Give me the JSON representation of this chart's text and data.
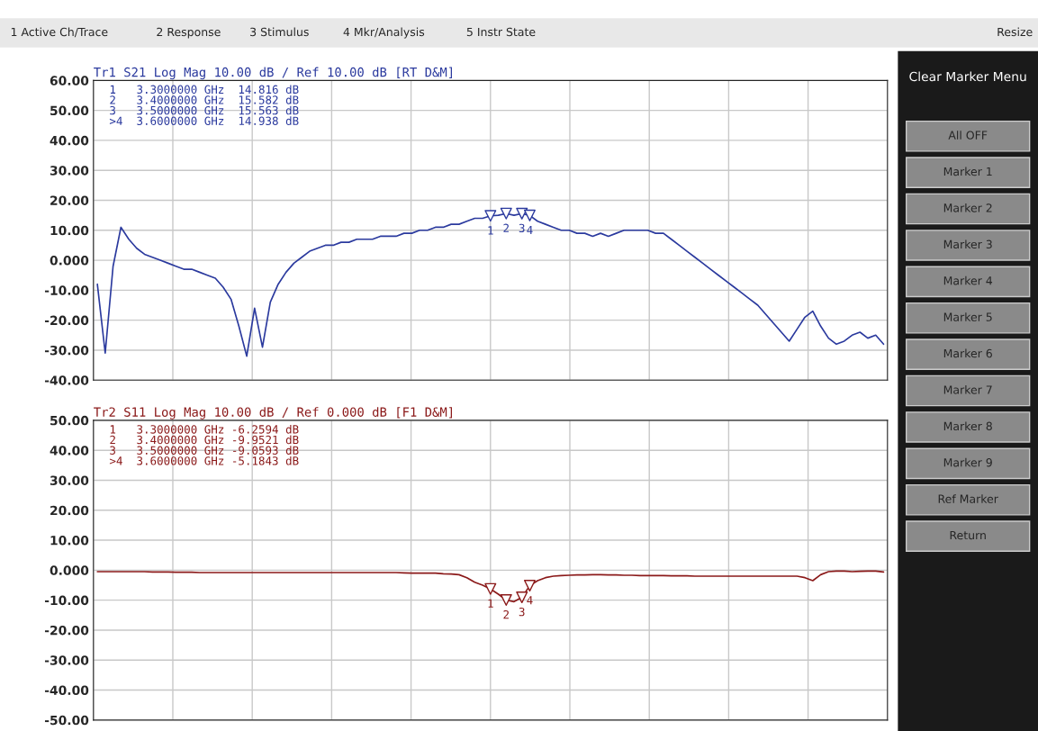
{
  "chart_data": [
    {
      "type": "line",
      "title": "Tr1 S21 Log Mag 10.00 dB / Ref 10.00 dB [RT D&M]",
      "grid": true,
      "tick_labels": "y",
      "ylim": [
        -40,
        60
      ],
      "yticks": [
        {
          "value": 60,
          "label": "60.00"
        },
        {
          "value": 50,
          "label": "50.00"
        },
        {
          "value": 40,
          "label": "40.00"
        },
        {
          "value": 30,
          "label": "30.00"
        },
        {
          "value": 20,
          "label": "20.00"
        },
        {
          "value": 10,
          "label": "10.00"
        },
        {
          "value": 0,
          "label": "0.000"
        },
        {
          "value": -10,
          "label": "-10.00"
        },
        {
          "value": -20,
          "label": "-20.00"
        },
        {
          "value": -30,
          "label": "-30.00"
        },
        {
          "value": -40,
          "label": "-40.00"
        }
      ],
      "categories": [
        null,
        null,
        null,
        null,
        null,
        null,
        null,
        null,
        null,
        null,
        null,
        null,
        null,
        null,
        null,
        null,
        null,
        null,
        null,
        null,
        null,
        null,
        null,
        null,
        null,
        null,
        null,
        null,
        null,
        null,
        null,
        null,
        null,
        null,
        null,
        null,
        null,
        null,
        null,
        null,
        null,
        null,
        null,
        null,
        null,
        null,
        null,
        null,
        null,
        null,
        null,
        null,
        null,
        null,
        null,
        null,
        null,
        null,
        null,
        null,
        null,
        null,
        null,
        null,
        null,
        null,
        null,
        null,
        null,
        null,
        null,
        null,
        null,
        null,
        null,
        null,
        null,
        null,
        null,
        null,
        null,
        null,
        null,
        null,
        null,
        null,
        null,
        null,
        null,
        null,
        null,
        null,
        null,
        null,
        null,
        null,
        null,
        null,
        null,
        null,
        null
      ],
      "annotations": [
        "1   3.3000000 GHz  14.816 dB",
        "2   3.4000000 GHz  15.582 dB",
        "3   3.5000000 GHz  15.563 dB",
        ">4  3.6000000 GHz  14.938 dB"
      ],
      "series": [
        {
          "type": "line",
          "color": "#2b3a9e",
          "values": [
            -8,
            -31,
            -2,
            11,
            7,
            4,
            2,
            1,
            0,
            -1,
            -2,
            -3,
            -3,
            -4,
            -5,
            -6,
            -9,
            -13,
            -22,
            -32,
            -16,
            -29,
            -14,
            -8,
            -4,
            -1,
            1,
            3,
            4,
            5,
            5,
            6,
            6,
            7,
            7,
            7,
            8,
            8,
            8,
            9,
            9,
            10,
            10,
            11,
            11,
            12,
            12,
            13,
            14,
            14,
            14.816,
            15,
            15.582,
            15,
            15.563,
            14.938,
            13,
            12,
            11,
            10,
            10,
            9,
            9,
            8,
            9,
            8,
            9,
            10,
            10,
            10,
            10,
            9,
            9,
            7,
            5,
            3,
            1,
            -1,
            -3,
            -5,
            -7,
            -9,
            -11,
            -13,
            -15,
            -18,
            -21,
            -24,
            -27,
            -23,
            -19,
            -17,
            -22,
            -26,
            -28,
            -27,
            -25,
            -24,
            -26,
            -25,
            -28
          ]
        },
        {
          "type": "scatter",
          "name": "1",
          "marker": "triangle",
          "color": "#2b3a9e",
          "values": [
            null,
            null,
            null,
            null,
            null,
            null,
            null,
            null,
            null,
            null,
            null,
            null,
            null,
            null,
            null,
            null,
            null,
            null,
            null,
            null,
            null,
            null,
            null,
            null,
            null,
            null,
            null,
            null,
            null,
            null,
            null,
            null,
            null,
            null,
            null,
            null,
            null,
            null,
            null,
            null,
            null,
            null,
            null,
            null,
            null,
            null,
            null,
            null,
            null,
            null,
            14.816,
            null,
            null,
            null,
            null,
            null,
            null,
            null,
            null,
            null,
            null,
            null,
            null,
            null,
            null,
            null,
            null,
            null,
            null,
            null,
            null,
            null,
            null,
            null,
            null,
            null,
            null,
            null,
            null,
            null,
            null,
            null,
            null,
            null,
            null,
            null,
            null,
            null,
            null,
            null,
            null,
            null,
            null,
            null,
            null,
            null,
            null,
            null,
            null,
            null,
            null
          ]
        },
        {
          "type": "scatter",
          "name": "2",
          "marker": "triangle",
          "color": "#2b3a9e",
          "values": [
            null,
            null,
            null,
            null,
            null,
            null,
            null,
            null,
            null,
            null,
            null,
            null,
            null,
            null,
            null,
            null,
            null,
            null,
            null,
            null,
            null,
            null,
            null,
            null,
            null,
            null,
            null,
            null,
            null,
            null,
            null,
            null,
            null,
            null,
            null,
            null,
            null,
            null,
            null,
            null,
            null,
            null,
            null,
            null,
            null,
            null,
            null,
            null,
            null,
            null,
            null,
            null,
            15.582,
            null,
            null,
            null,
            null,
            null,
            null,
            null,
            null,
            null,
            null,
            null,
            null,
            null,
            null,
            null,
            null,
            null,
            null,
            null,
            null,
            null,
            null,
            null,
            null,
            null,
            null,
            null,
            null,
            null,
            null,
            null,
            null,
            null,
            null,
            null,
            null,
            null,
            null,
            null,
            null,
            null,
            null,
            null,
            null,
            null,
            null,
            null,
            null
          ]
        },
        {
          "type": "scatter",
          "name": "3",
          "marker": "triangle",
          "color": "#2b3a9e",
          "values": [
            null,
            null,
            null,
            null,
            null,
            null,
            null,
            null,
            null,
            null,
            null,
            null,
            null,
            null,
            null,
            null,
            null,
            null,
            null,
            null,
            null,
            null,
            null,
            null,
            null,
            null,
            null,
            null,
            null,
            null,
            null,
            null,
            null,
            null,
            null,
            null,
            null,
            null,
            null,
            null,
            null,
            null,
            null,
            null,
            null,
            null,
            null,
            null,
            null,
            null,
            null,
            null,
            null,
            null,
            15.563,
            null,
            null,
            null,
            null,
            null,
            null,
            null,
            null,
            null,
            null,
            null,
            null,
            null,
            null,
            null,
            null,
            null,
            null,
            null,
            null,
            null,
            null,
            null,
            null,
            null,
            null,
            null,
            null,
            null,
            null,
            null,
            null,
            null,
            null,
            null,
            null,
            null,
            null,
            null,
            null,
            null,
            null,
            null,
            null,
            null,
            null
          ]
        },
        {
          "type": "scatter",
          "name": "4",
          "marker": "triangle",
          "color": "#2b3a9e",
          "values": [
            null,
            null,
            null,
            null,
            null,
            null,
            null,
            null,
            null,
            null,
            null,
            null,
            null,
            null,
            null,
            null,
            null,
            null,
            null,
            null,
            null,
            null,
            null,
            null,
            null,
            null,
            null,
            null,
            null,
            null,
            null,
            null,
            null,
            null,
            null,
            null,
            null,
            null,
            null,
            null,
            null,
            null,
            null,
            null,
            null,
            null,
            null,
            null,
            null,
            null,
            null,
            null,
            null,
            null,
            null,
            14.938,
            null,
            null,
            null,
            null,
            null,
            null,
            null,
            null,
            null,
            null,
            null,
            null,
            null,
            null,
            null,
            null,
            null,
            null,
            null,
            null,
            null,
            null,
            null,
            null,
            null,
            null,
            null,
            null,
            null,
            null,
            null,
            null,
            null,
            null,
            null,
            null,
            null,
            null,
            null,
            null,
            null,
            null,
            null,
            null,
            null
          ]
        }
      ]
    },
    {
      "type": "line",
      "title": "Tr2 S11 Log Mag 10.00 dB / Ref 0.000 dB [F1 D&M]",
      "grid": true,
      "tick_labels": "y",
      "ylim": [
        -50,
        50
      ],
      "yticks": [
        {
          "value": 50,
          "label": "50.00"
        },
        {
          "value": 40,
          "label": "40.00"
        },
        {
          "value": 30,
          "label": "30.00"
        },
        {
          "value": 20,
          "label": "20.00"
        },
        {
          "value": 10,
          "label": "10.00"
        },
        {
          "value": 0,
          "label": "0.000"
        },
        {
          "value": -10,
          "label": "-10.00"
        },
        {
          "value": -20,
          "label": "-20.00"
        },
        {
          "value": -30,
          "label": "-30.00"
        },
        {
          "value": -40,
          "label": "-40.00"
        },
        {
          "value": -50,
          "label": "-50.00"
        }
      ],
      "categories": [
        null,
        null,
        null,
        null,
        null,
        null,
        null,
        null,
        null,
        null,
        null,
        null,
        null,
        null,
        null,
        null,
        null,
        null,
        null,
        null,
        null,
        null,
        null,
        null,
        null,
        null,
        null,
        null,
        null,
        null,
        null,
        null,
        null,
        null,
        null,
        null,
        null,
        null,
        null,
        null,
        null,
        null,
        null,
        null,
        null,
        null,
        null,
        null,
        null,
        null,
        null,
        null,
        null,
        null,
        null,
        null,
        null,
        null,
        null,
        null,
        null,
        null,
        null,
        null,
        null,
        null,
        null,
        null,
        null,
        null,
        null,
        null,
        null,
        null,
        null,
        null,
        null,
        null,
        null,
        null,
        null,
        null,
        null,
        null,
        null,
        null,
        null,
        null,
        null,
        null,
        null,
        null,
        null,
        null,
        null,
        null,
        null,
        null,
        null,
        null,
        null
      ],
      "annotations": [
        "1   3.3000000 GHz -6.2594 dB",
        "2   3.4000000 GHz -9.9521 dB",
        "3   3.5000000 GHz -9.0593 dB",
        ">4  3.6000000 GHz -5.1843 dB"
      ],
      "series": [
        {
          "type": "line",
          "color": "#8b1a1a",
          "values": [
            -0.5,
            -0.5,
            -0.5,
            -0.5,
            -0.5,
            -0.5,
            -0.5,
            -0.6,
            -0.6,
            -0.6,
            -0.7,
            -0.7,
            -0.7,
            -0.8,
            -0.8,
            -0.8,
            -0.8,
            -0.8,
            -0.8,
            -0.8,
            -0.8,
            -0.8,
            -0.8,
            -0.8,
            -0.8,
            -0.8,
            -0.8,
            -0.8,
            -0.8,
            -0.8,
            -0.8,
            -0.8,
            -0.8,
            -0.8,
            -0.8,
            -0.8,
            -0.8,
            -0.8,
            -0.8,
            -0.9,
            -1,
            -1,
            -1,
            -1,
            -1.2,
            -1.3,
            -1.5,
            -2.5,
            -4,
            -5,
            -6.2594,
            -8,
            -9.9521,
            -10.5,
            -9.0593,
            -5.1843,
            -3.5,
            -2.5,
            -2,
            -1.8,
            -1.7,
            -1.6,
            -1.6,
            -1.5,
            -1.5,
            -1.6,
            -1.6,
            -1.7,
            -1.7,
            -1.8,
            -1.8,
            -1.8,
            -1.8,
            -1.9,
            -1.9,
            -1.9,
            -2,
            -2,
            -2,
            -2,
            -2,
            -2,
            -2,
            -2,
            -2,
            -2,
            -2,
            -2,
            -2,
            -2,
            -2.5,
            -3.5,
            -1.5,
            -0.5,
            -0.3,
            -0.3,
            -0.5,
            -0.4,
            -0.3,
            -0.3,
            -0.6
          ]
        },
        {
          "type": "scatter",
          "name": "1",
          "marker": "triangle",
          "color": "#8b1a1a",
          "values": [
            null,
            null,
            null,
            null,
            null,
            null,
            null,
            null,
            null,
            null,
            null,
            null,
            null,
            null,
            null,
            null,
            null,
            null,
            null,
            null,
            null,
            null,
            null,
            null,
            null,
            null,
            null,
            null,
            null,
            null,
            null,
            null,
            null,
            null,
            null,
            null,
            null,
            null,
            null,
            null,
            null,
            null,
            null,
            null,
            null,
            null,
            null,
            null,
            null,
            null,
            -6.2594,
            null,
            null,
            null,
            null,
            null,
            null,
            null,
            null,
            null,
            null,
            null,
            null,
            null,
            null,
            null,
            null,
            null,
            null,
            null,
            null,
            null,
            null,
            null,
            null,
            null,
            null,
            null,
            null,
            null,
            null,
            null,
            null,
            null,
            null,
            null,
            null,
            null,
            null,
            null,
            null,
            null,
            null,
            null,
            null,
            null,
            null,
            null,
            null,
            null,
            null
          ]
        },
        {
          "type": "scatter",
          "name": "2",
          "marker": "triangle",
          "color": "#8b1a1a",
          "values": [
            null,
            null,
            null,
            null,
            null,
            null,
            null,
            null,
            null,
            null,
            null,
            null,
            null,
            null,
            null,
            null,
            null,
            null,
            null,
            null,
            null,
            null,
            null,
            null,
            null,
            null,
            null,
            null,
            null,
            null,
            null,
            null,
            null,
            null,
            null,
            null,
            null,
            null,
            null,
            null,
            null,
            null,
            null,
            null,
            null,
            null,
            null,
            null,
            null,
            null,
            null,
            null,
            -9.9521,
            null,
            null,
            null,
            null,
            null,
            null,
            null,
            null,
            null,
            null,
            null,
            null,
            null,
            null,
            null,
            null,
            null,
            null,
            null,
            null,
            null,
            null,
            null,
            null,
            null,
            null,
            null,
            null,
            null,
            null,
            null,
            null,
            null,
            null,
            null,
            null,
            null,
            null,
            null,
            null,
            null,
            null,
            null,
            null,
            null,
            null,
            null,
            null
          ]
        },
        {
          "type": "scatter",
          "name": "3",
          "marker": "triangle",
          "color": "#8b1a1a",
          "values": [
            null,
            null,
            null,
            null,
            null,
            null,
            null,
            null,
            null,
            null,
            null,
            null,
            null,
            null,
            null,
            null,
            null,
            null,
            null,
            null,
            null,
            null,
            null,
            null,
            null,
            null,
            null,
            null,
            null,
            null,
            null,
            null,
            null,
            null,
            null,
            null,
            null,
            null,
            null,
            null,
            null,
            null,
            null,
            null,
            null,
            null,
            null,
            null,
            null,
            null,
            null,
            null,
            null,
            null,
            -9.0593,
            null,
            null,
            null,
            null,
            null,
            null,
            null,
            null,
            null,
            null,
            null,
            null,
            null,
            null,
            null,
            null,
            null,
            null,
            null,
            null,
            null,
            null,
            null,
            null,
            null,
            null,
            null,
            null,
            null,
            null,
            null,
            null,
            null,
            null,
            null,
            null,
            null,
            null,
            null,
            null,
            null,
            null,
            null,
            null,
            null,
            null
          ]
        },
        {
          "type": "scatter",
          "name": "4",
          "marker": "triangle",
          "color": "#8b1a1a",
          "values": [
            null,
            null,
            null,
            null,
            null,
            null,
            null,
            null,
            null,
            null,
            null,
            null,
            null,
            null,
            null,
            null,
            null,
            null,
            null,
            null,
            null,
            null,
            null,
            null,
            null,
            null,
            null,
            null,
            null,
            null,
            null,
            null,
            null,
            null,
            null,
            null,
            null,
            null,
            null,
            null,
            null,
            null,
            null,
            null,
            null,
            null,
            null,
            null,
            null,
            null,
            null,
            null,
            null,
            null,
            null,
            -5.1843,
            null,
            null,
            null,
            null,
            null,
            null,
            null,
            null,
            null,
            null,
            null,
            null,
            null,
            null,
            null,
            null,
            null,
            null,
            null,
            null,
            null,
            null,
            null,
            null,
            null,
            null,
            null,
            null,
            null,
            null,
            null,
            null,
            null,
            null,
            null,
            null,
            null,
            null,
            null,
            null,
            null,
            null,
            null,
            null,
            null
          ]
        }
      ]
    },
    {
      "type": "other",
      "title": "Clear Marker Menu",
      "annotations": [
        "1 Active Ch/Trace",
        "2 Response",
        "3 Stimulus",
        "4 Mkr/Analysis",
        "5 Instr State",
        "Resize",
        "All OFF",
        "Marker 1",
        "Marker 2",
        "Marker 3",
        "Marker 4",
        "Marker 5",
        "Marker 6",
        "Marker 7",
        "Marker 8",
        "Marker 9",
        "Ref Marker",
        "Return"
      ]
    }
  ]
}
